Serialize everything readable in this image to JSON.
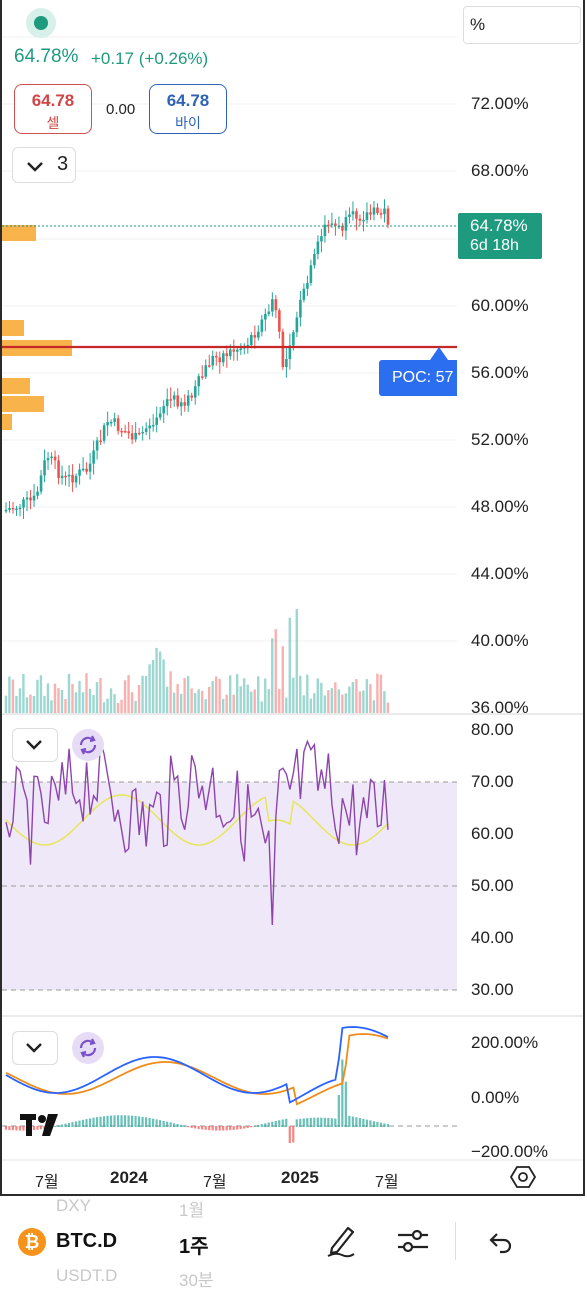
{
  "header": {
    "last_price": "64.78%",
    "change": "+0.17 (+0.26%)",
    "sell_value": "64.78",
    "sell_label": "셀",
    "spread": "0.00",
    "buy_value": "64.78",
    "buy_label": "바이",
    "scale_mode": "%",
    "indicator_count": "3"
  },
  "price_axis": [
    "72.00%",
    "68.00%",
    "64.78%",
    "60.00%",
    "56.00%",
    "52.00%",
    "48.00%",
    "44.00%",
    "40.00%",
    "36.00%"
  ],
  "price_tag": {
    "price": "64.78%",
    "countdown": "6d 18h"
  },
  "poc_label": "POC: 57",
  "rsi_axis": [
    "80.00",
    "70.00",
    "60.00",
    "50.00",
    "40.00",
    "30.00"
  ],
  "macd_axis": [
    "200.00%",
    "0.00%",
    "−200.00%"
  ],
  "time_axis": [
    "7월",
    "2024",
    "7월",
    "2025",
    "7월"
  ],
  "bottom_bar": {
    "symbol": "BTC.D",
    "interval": "1주",
    "ghost_top_symbol": "DXY",
    "ghost_top_interval": "1월",
    "ghost_bottom_symbol": "USDT.D",
    "ghost_bottom_interval": "30분"
  },
  "colors": {
    "up": "#26a69a",
    "down": "#ef5350",
    "accent_green": "#1e9a7f",
    "poc_line": "#c62828",
    "poc_tag": "#2b6ef0",
    "rsi_line": "#8e44ad",
    "rsi_ma": "#e6e65a",
    "macd_line": "#2962ff",
    "signal_line": "#ef8c1a",
    "volume_profile": "#f7a62a"
  },
  "icons": [
    "status-dot-icon",
    "chevron-down-icon",
    "sync-icon",
    "tradingview-logo-icon",
    "settings-hex-icon",
    "bitcoin-icon",
    "pencil-icon",
    "sliders-icon",
    "undo-icon"
  ]
}
